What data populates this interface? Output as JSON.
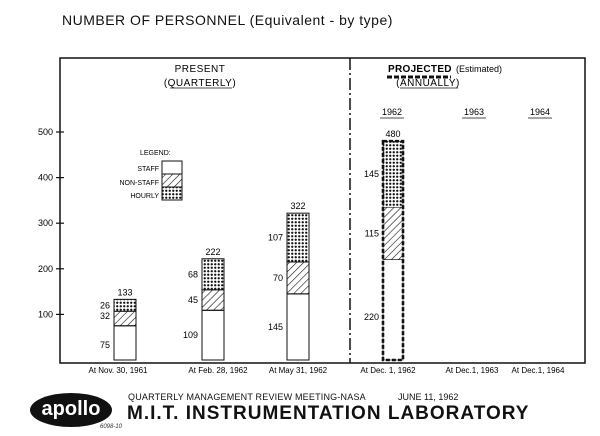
{
  "title": "NUMBER OF PERSONNEL (Equivalent - by type)",
  "present_label": "PRESENT",
  "present_sub": "(QUARTERLY)",
  "projected_label": "PROJECTED",
  "projected_est": "(Estimated)",
  "projected_sub": "(ANNUALLY)",
  "legend": {
    "title": "LEGEND:",
    "items": [
      "STAFF",
      "NON-STAFF",
      "HOURLY"
    ]
  },
  "footer": {
    "logo": "apollo",
    "meeting": "QUARTERLY MANAGEMENT REVIEW MEETING-NASA",
    "date": "JUNE 11, 1962",
    "lab": "M.I.T. INSTRUMENTATION LABORATORY",
    "code": "6098-10"
  },
  "chart_data": {
    "type": "bar",
    "stacked": true,
    "categories": [
      "At Nov. 30, 1961",
      "At Feb. 28, 1962",
      "At May 31, 1962",
      "At Dec. 1, 1962",
      "At Dec.1, 1963",
      "At Dec.1, 1964"
    ],
    "year_labels": [
      "1962",
      "1963",
      "1964"
    ],
    "series": [
      {
        "name": "STAFF",
        "values": [
          75,
          109,
          145,
          220,
          null,
          null
        ]
      },
      {
        "name": "NON-STAFF",
        "values": [
          32,
          45,
          70,
          115,
          null,
          null
        ]
      },
      {
        "name": "HOURLY",
        "values": [
          26,
          68,
          107,
          145,
          null,
          null
        ]
      }
    ],
    "totals": [
      133,
      222,
      322,
      480,
      null,
      null
    ],
    "projected": [
      false,
      false,
      false,
      true,
      false,
      false
    ],
    "ylim": [
      0,
      520
    ],
    "yticks": [
      100,
      200,
      300,
      400,
      500
    ],
    "grid": false,
    "legend_placement": "upper-left"
  }
}
